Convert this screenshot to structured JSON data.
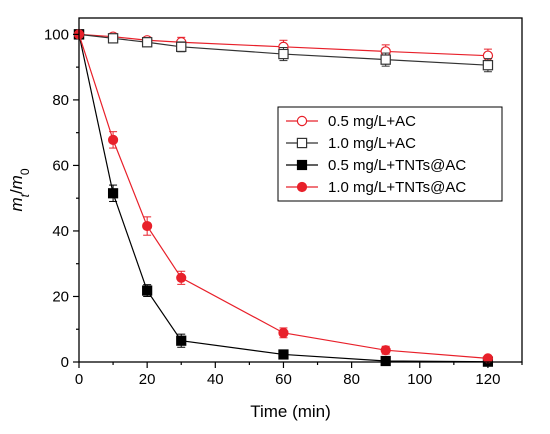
{
  "chart_data": {
    "type": "line",
    "xlabel": "Time (min)",
    "ylabel": {
      "main": "m",
      "sub_main": "t",
      "sep": "/",
      "denom": "m",
      "sub_denom": "0"
    },
    "xlim": [
      0,
      130
    ],
    "ylim": [
      0,
      105
    ],
    "xticks": [
      0,
      20,
      40,
      60,
      80,
      100,
      120
    ],
    "yticks": [
      0,
      20,
      40,
      60,
      80,
      100
    ],
    "grid": false,
    "legend_position": "center-right",
    "series": [
      {
        "name": "0.5 mg/L+AC",
        "marker": "circle-open",
        "color": "#e8202a",
        "x": [
          0,
          10,
          20,
          30,
          60,
          90,
          120
        ],
        "y": [
          100,
          99.3,
          98.2,
          97.6,
          96.2,
          94.8,
          93.5
        ],
        "err": [
          0,
          1.0,
          1.0,
          1.5,
          2.0,
          2.0,
          2.0
        ]
      },
      {
        "name": "1.0 mg/L+AC",
        "marker": "square-open",
        "color": "#333333",
        "x": [
          0,
          10,
          20,
          30,
          60,
          90,
          120
        ],
        "y": [
          100,
          98.8,
          97.6,
          96.2,
          94.0,
          92.3,
          90.6
        ],
        "err": [
          0,
          1.0,
          1.0,
          1.5,
          2.0,
          2.0,
          2.0
        ]
      },
      {
        "name": "0.5 mg/L+TNTs@AC",
        "marker": "square-filled",
        "color": "#000000",
        "x": [
          0,
          10,
          20,
          30,
          60,
          90,
          120
        ],
        "y": [
          100,
          51.5,
          21.8,
          6.5,
          2.3,
          0.3,
          0.1
        ],
        "err": [
          0,
          2.5,
          1.8,
          2.0,
          1.0,
          0.5,
          0.3
        ]
      },
      {
        "name": "1.0 mg/L+TNTs@AC",
        "marker": "circle-filled",
        "color": "#e8202a",
        "x": [
          0,
          10,
          20,
          30,
          60,
          90,
          120
        ],
        "y": [
          100,
          67.8,
          41.5,
          25.7,
          8.9,
          3.6,
          1.1
        ],
        "err": [
          0,
          2.5,
          2.8,
          2.0,
          1.5,
          1.2,
          0.8
        ]
      }
    ]
  }
}
